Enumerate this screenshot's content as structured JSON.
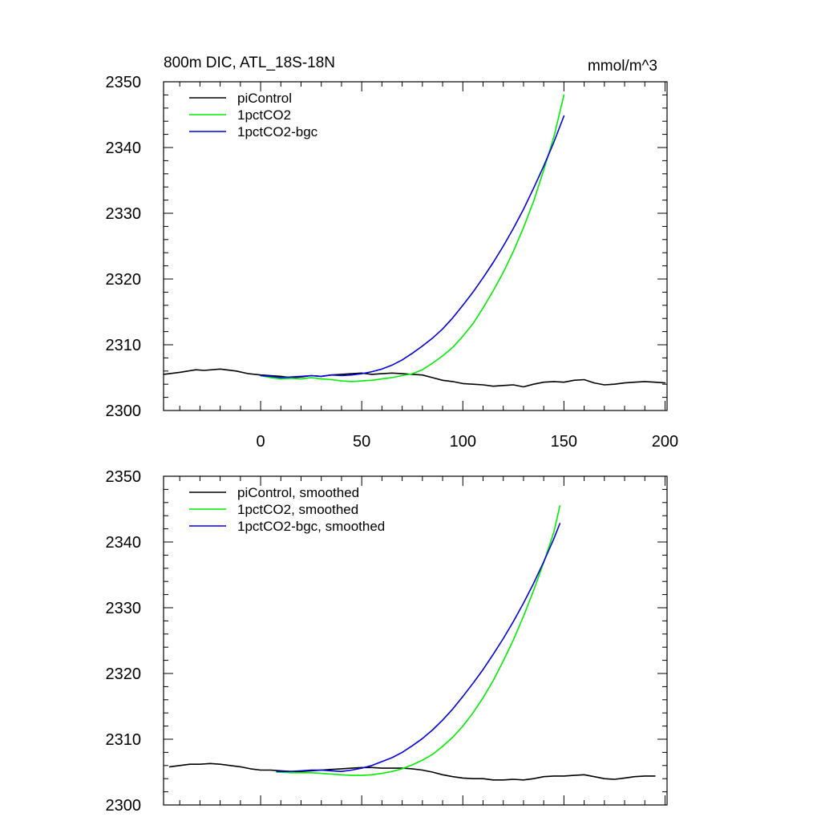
{
  "chart_data": [
    {
      "type": "line",
      "title_left": "800m DIC, ATL_18S-18N",
      "title_right": "mmol/m^3",
      "xlim": [
        -48,
        201
      ],
      "ylim": [
        2300,
        2350
      ],
      "xticks": [
        0,
        50,
        100,
        150,
        200
      ],
      "yticks": [
        2300,
        2310,
        2320,
        2330,
        2340,
        2350
      ],
      "show_x_tick_labels": true,
      "legend_position": "top-left",
      "series": [
        {
          "name": "piControl",
          "color": "#000000",
          "x": [
            -48,
            -40,
            -32,
            -28,
            -20,
            -12,
            -6,
            0,
            5,
            10,
            15,
            20,
            25,
            30,
            35,
            40,
            45,
            50,
            55,
            60,
            65,
            70,
            75,
            80,
            85,
            90,
            95,
            100,
            105,
            110,
            115,
            120,
            125,
            130,
            135,
            140,
            145,
            150,
            155,
            160,
            165,
            170,
            175,
            180,
            185,
            190,
            195,
            200
          ],
          "y": [
            2305.5,
            2305.8,
            2306.2,
            2306.1,
            2306.3,
            2306.0,
            2305.6,
            2305.4,
            2305.3,
            2305.2,
            2305.0,
            2305.1,
            2305.3,
            2305.2,
            2305.4,
            2305.5,
            2305.6,
            2305.7,
            2305.5,
            2305.6,
            2305.7,
            2305.6,
            2305.5,
            2305.4,
            2305.0,
            2304.6,
            2304.4,
            2304.1,
            2304.0,
            2303.9,
            2303.7,
            2303.8,
            2303.9,
            2303.6,
            2304.0,
            2304.3,
            2304.4,
            2304.3,
            2304.6,
            2304.7,
            2304.2,
            2303.9,
            2304.0,
            2304.2,
            2304.3,
            2304.4,
            2304.3,
            2304.2
          ]
        },
        {
          "name": "1pctCO2",
          "color": "#00ee00",
          "x": [
            0,
            5,
            10,
            15,
            20,
            25,
            30,
            35,
            40,
            45,
            50,
            55,
            60,
            65,
            70,
            75,
            80,
            85,
            90,
            95,
            100,
            105,
            110,
            115,
            120,
            125,
            130,
            135,
            140,
            145,
            150
          ],
          "y": [
            2305.3,
            2305.0,
            2304.8,
            2304.9,
            2304.8,
            2305.0,
            2304.8,
            2304.7,
            2304.5,
            2304.4,
            2304.5,
            2304.6,
            2304.8,
            2305.0,
            2305.3,
            2305.6,
            2306.2,
            2307.2,
            2308.3,
            2309.6,
            2311.3,
            2313.2,
            2315.6,
            2318.2,
            2321.0,
            2324.2,
            2327.8,
            2331.8,
            2336.6,
            2341.6,
            2348.0
          ]
        },
        {
          "name": "1pctCO2-bgc",
          "color": "#0000dd",
          "x": [
            0,
            5,
            10,
            15,
            20,
            25,
            30,
            35,
            40,
            45,
            50,
            55,
            60,
            65,
            70,
            75,
            80,
            85,
            90,
            95,
            100,
            105,
            110,
            115,
            120,
            125,
            130,
            135,
            140,
            145,
            150
          ],
          "y": [
            2305.3,
            2305.2,
            2305.0,
            2305.1,
            2305.2,
            2305.3,
            2305.2,
            2305.4,
            2305.3,
            2305.4,
            2305.6,
            2305.9,
            2306.3,
            2306.9,
            2307.7,
            2308.7,
            2309.8,
            2311.0,
            2312.4,
            2314.1,
            2316.0,
            2318.0,
            2320.2,
            2322.5,
            2325.0,
            2327.7,
            2330.6,
            2333.8,
            2337.2,
            2340.8,
            2344.8
          ]
        }
      ]
    },
    {
      "type": "line",
      "xlim": [
        -48,
        201
      ],
      "ylim": [
        2300,
        2350
      ],
      "xticks": [
        0,
        50,
        100,
        150,
        200
      ],
      "yticks": [
        2300,
        2310,
        2320,
        2330,
        2340,
        2350
      ],
      "show_x_tick_labels": false,
      "legend_position": "top-left",
      "series": [
        {
          "name": "piControl, smoothed",
          "color": "#000000",
          "x": [
            -45,
            -40,
            -35,
            -30,
            -25,
            -20,
            -15,
            -10,
            -5,
            0,
            5,
            10,
            15,
            20,
            25,
            30,
            35,
            40,
            45,
            50,
            55,
            60,
            65,
            70,
            75,
            80,
            85,
            90,
            95,
            100,
            105,
            110,
            115,
            120,
            125,
            130,
            135,
            140,
            145,
            150,
            155,
            160,
            165,
            170,
            175,
            180,
            185,
            190,
            195
          ],
          "y": [
            2305.8,
            2306.0,
            2306.2,
            2306.2,
            2306.3,
            2306.2,
            2306.0,
            2305.8,
            2305.5,
            2305.3,
            2305.3,
            2305.2,
            2305.1,
            2305.1,
            2305.2,
            2305.3,
            2305.4,
            2305.5,
            2305.6,
            2305.7,
            2305.7,
            2305.6,
            2305.6,
            2305.6,
            2305.5,
            2305.3,
            2305.0,
            2304.6,
            2304.3,
            2304.1,
            2304.0,
            2304.0,
            2303.8,
            2303.8,
            2303.9,
            2303.8,
            2304.0,
            2304.3,
            2304.4,
            2304.4,
            2304.5,
            2304.6,
            2304.3,
            2304.0,
            2303.9,
            2304.1,
            2304.3,
            2304.4,
            2304.4
          ]
        },
        {
          "name": "1pctCO2, smoothed",
          "color": "#00ee00",
          "x": [
            8,
            15,
            20,
            25,
            30,
            35,
            40,
            45,
            50,
            55,
            60,
            65,
            70,
            75,
            80,
            85,
            90,
            95,
            100,
            105,
            110,
            115,
            120,
            125,
            130,
            135,
            140,
            145,
            148
          ],
          "y": [
            2305.0,
            2304.9,
            2304.9,
            2304.9,
            2304.8,
            2304.7,
            2304.6,
            2304.5,
            2304.5,
            2304.6,
            2304.8,
            2305.1,
            2305.5,
            2306.1,
            2306.8,
            2307.7,
            2308.9,
            2310.3,
            2312.0,
            2314.0,
            2316.3,
            2318.9,
            2321.9,
            2325.1,
            2328.7,
            2332.6,
            2336.9,
            2341.5,
            2345.5
          ]
        },
        {
          "name": "1pctCO2-bgc, smoothed",
          "color": "#0000dd",
          "x": [
            8,
            15,
            20,
            25,
            30,
            35,
            40,
            45,
            50,
            55,
            60,
            65,
            70,
            75,
            80,
            85,
            90,
            95,
            100,
            105,
            110,
            115,
            120,
            125,
            130,
            135,
            140,
            145,
            148
          ],
          "y": [
            2305.1,
            2305.1,
            2305.2,
            2305.3,
            2305.3,
            2305.2,
            2305.1,
            2305.3,
            2305.6,
            2306.0,
            2306.6,
            2307.2,
            2308.0,
            2309.0,
            2310.1,
            2311.4,
            2312.9,
            2314.6,
            2316.5,
            2318.5,
            2320.6,
            2322.9,
            2325.3,
            2327.9,
            2330.7,
            2333.7,
            2337.0,
            2340.5,
            2342.8
          ]
        }
      ]
    }
  ]
}
